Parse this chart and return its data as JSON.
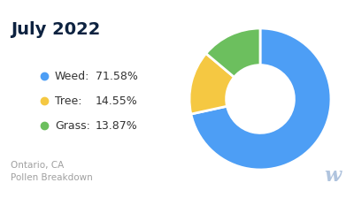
{
  "title": "July 2022",
  "subtitle_line1": "Ontario, CA",
  "subtitle_line2": "Pollen Breakdown",
  "labels": [
    "Weed",
    "Tree",
    "Grass"
  ],
  "values": [
    71.58,
    14.55,
    13.87
  ],
  "colors": [
    "#4D9EF5",
    "#F5C842",
    "#6CBF5E"
  ],
  "label_names": [
    "Weed:",
    "Tree:",
    "Grass:"
  ],
  "label_values": [
    "71.58%",
    "14.55%",
    "13.87%"
  ],
  "background_color": "#ffffff",
  "title_color": "#0d2240",
  "subtitle_color": "#a0a0a0",
  "watermark_color": "#b0c4de",
  "start_angle": 90
}
